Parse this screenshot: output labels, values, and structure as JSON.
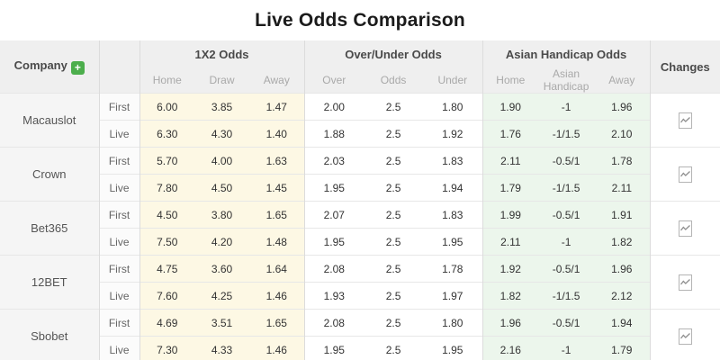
{
  "title": "Live Odds Comparison",
  "colors": {
    "add_button": "#4cae4c",
    "header_bg": "#efefef",
    "x12_highlight": "#fdf8e4",
    "handicap_highlight": "#ecf6ec",
    "title_text": "#1b1b1b",
    "subheader_text": "#a9a9a9"
  },
  "icons": {
    "add": "plus-icon",
    "changes": "trend-chart-icon"
  },
  "table": {
    "company_header": "Company",
    "add_button": "+",
    "changes_header": "Changes",
    "groups": [
      {
        "label": "1X2 Odds",
        "cols": [
          "Home",
          "Draw",
          "Away"
        ]
      },
      {
        "label": "Over/Under Odds",
        "cols": [
          "Over",
          "Odds",
          "Under"
        ]
      },
      {
        "label": "Asian Handicap Odds",
        "cols": [
          "Home",
          "Asian Handicap",
          "Away"
        ]
      }
    ],
    "companies": [
      {
        "name": "Macauslot",
        "rows": [
          {
            "type": "First",
            "x12": [
              "6.00",
              "3.85",
              "1.47"
            ],
            "ou": [
              "2.00",
              "2.5",
              "1.80"
            ],
            "ah": [
              "1.90",
              "-1",
              "1.96"
            ]
          },
          {
            "type": "Live",
            "x12": [
              "6.30",
              "4.30",
              "1.40"
            ],
            "ou": [
              "1.88",
              "2.5",
              "1.92"
            ],
            "ah": [
              "1.76",
              "-1/1.5",
              "2.10"
            ]
          }
        ]
      },
      {
        "name": "Crown",
        "rows": [
          {
            "type": "First",
            "x12": [
              "5.70",
              "4.00",
              "1.63"
            ],
            "ou": [
              "2.03",
              "2.5",
              "1.83"
            ],
            "ah": [
              "2.11",
              "-0.5/1",
              "1.78"
            ]
          },
          {
            "type": "Live",
            "x12": [
              "7.80",
              "4.50",
              "1.45"
            ],
            "ou": [
              "1.95",
              "2.5",
              "1.94"
            ],
            "ah": [
              "1.79",
              "-1/1.5",
              "2.11"
            ]
          }
        ]
      },
      {
        "name": "Bet365",
        "rows": [
          {
            "type": "First",
            "x12": [
              "4.50",
              "3.80",
              "1.65"
            ],
            "ou": [
              "2.07",
              "2.5",
              "1.83"
            ],
            "ah": [
              "1.99",
              "-0.5/1",
              "1.91"
            ]
          },
          {
            "type": "Live",
            "x12": [
              "7.50",
              "4.20",
              "1.48"
            ],
            "ou": [
              "1.95",
              "2.5",
              "1.95"
            ],
            "ah": [
              "2.11",
              "-1",
              "1.82"
            ]
          }
        ]
      },
      {
        "name": "12BET",
        "rows": [
          {
            "type": "First",
            "x12": [
              "4.75",
              "3.60",
              "1.64"
            ],
            "ou": [
              "2.08",
              "2.5",
              "1.78"
            ],
            "ah": [
              "1.92",
              "-0.5/1",
              "1.96"
            ]
          },
          {
            "type": "Live",
            "x12": [
              "7.60",
              "4.25",
              "1.46"
            ],
            "ou": [
              "1.93",
              "2.5",
              "1.97"
            ],
            "ah": [
              "1.82",
              "-1/1.5",
              "2.12"
            ]
          }
        ]
      },
      {
        "name": "Sbobet",
        "rows": [
          {
            "type": "First",
            "x12": [
              "4.69",
              "3.51",
              "1.65"
            ],
            "ou": [
              "2.08",
              "2.5",
              "1.80"
            ],
            "ah": [
              "1.96",
              "-0.5/1",
              "1.94"
            ]
          },
          {
            "type": "Live",
            "x12": [
              "7.30",
              "4.33",
              "1.46"
            ],
            "ou": [
              "1.95",
              "2.5",
              "1.95"
            ],
            "ah": [
              "2.16",
              "-1",
              "1.79"
            ]
          }
        ]
      }
    ]
  }
}
